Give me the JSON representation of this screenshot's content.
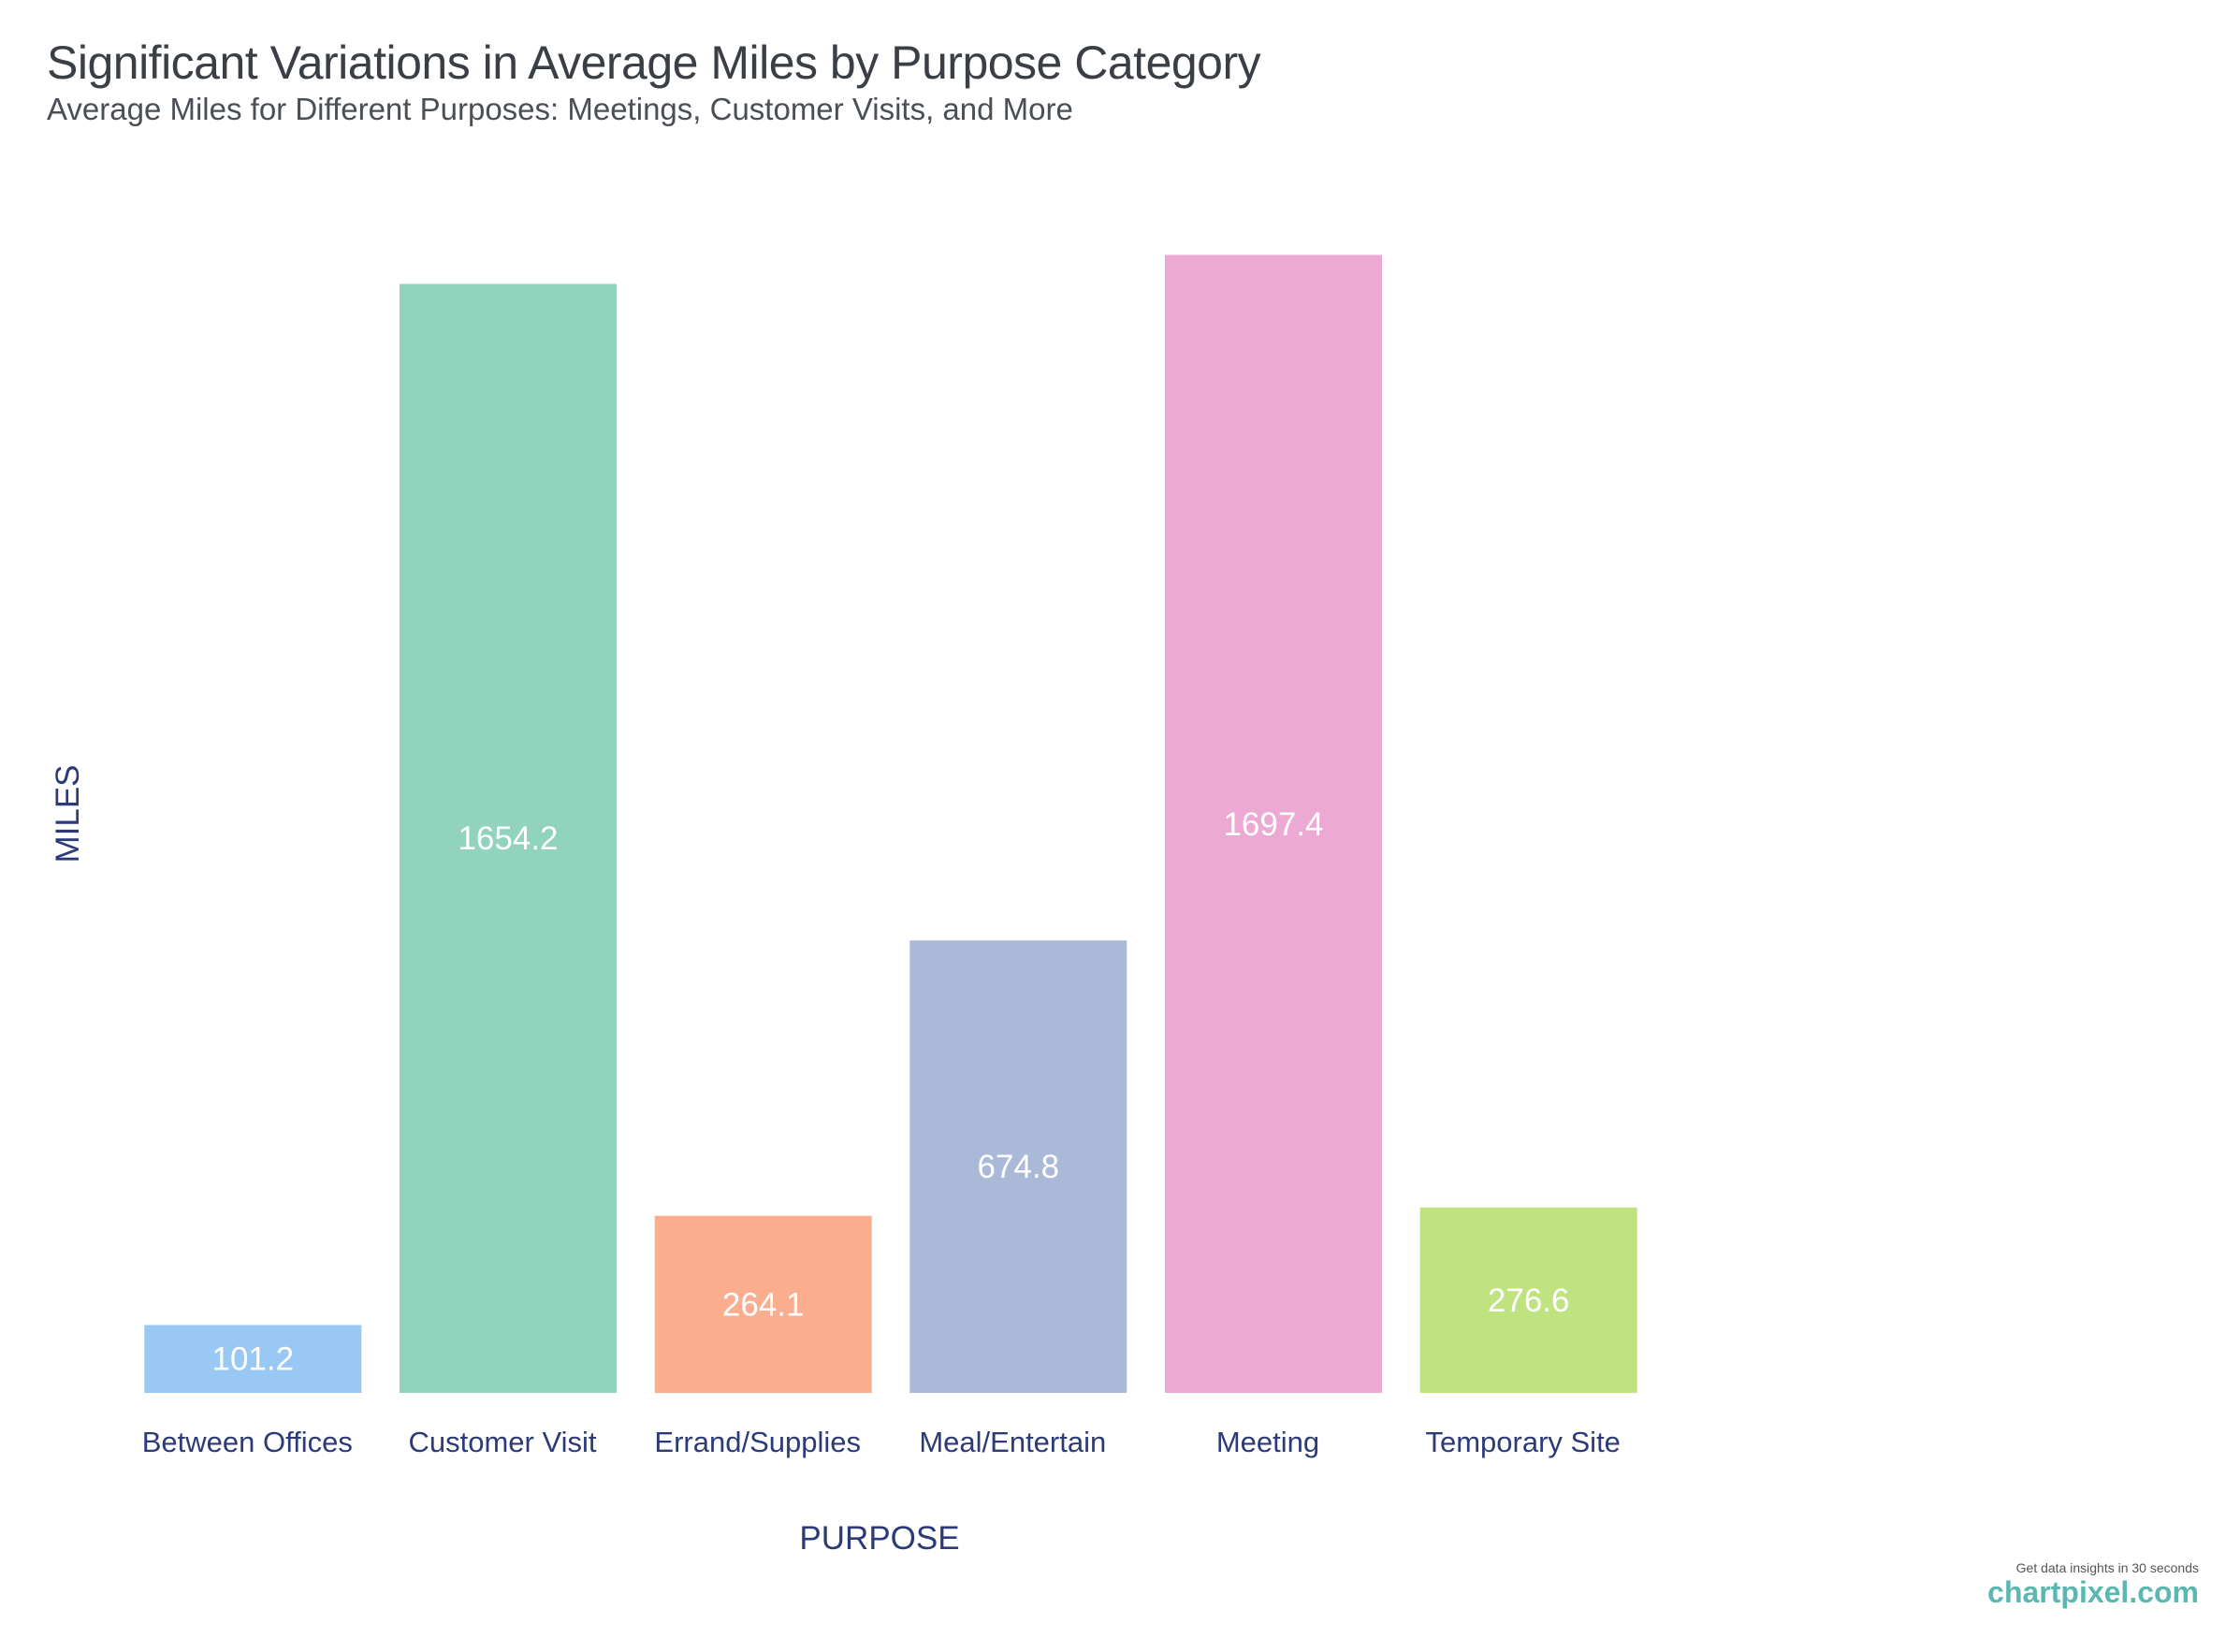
{
  "chart_data": {
    "type": "bar",
    "title": "Significant Variations in Average Miles by Purpose Category",
    "subtitle": "Average Miles for Different Purposes: Meetings, Customer Visits, and More",
    "xlabel": "PURPOSE",
    "ylabel": "MILES",
    "categories": [
      "Between Offices",
      "Customer Visit",
      "Errand/Supplies",
      "Meal/Entertain",
      "Meeting",
      "Temporary Site"
    ],
    "values": [
      101.2,
      1654.2,
      264.1,
      674.8,
      1697.4,
      276.6
    ],
    "data_labels": [
      "101.2",
      "1654.2",
      "264.1",
      "674.8",
      "1697.4",
      "276.6"
    ],
    "ylim": [
      0,
      1800
    ],
    "grid": false,
    "legend": "none",
    "colors": [
      "#9ac8f4",
      "#91d3bd",
      "#fbae8e",
      "#abb9d8",
      "#eca9d3",
      "#c0e382"
    ],
    "axis_text_color": "#2c3a78",
    "label_color": "#ffffff"
  },
  "watermark": {
    "tagline": "Get data insights in 30 seconds",
    "brand": "chartpixel.com"
  }
}
